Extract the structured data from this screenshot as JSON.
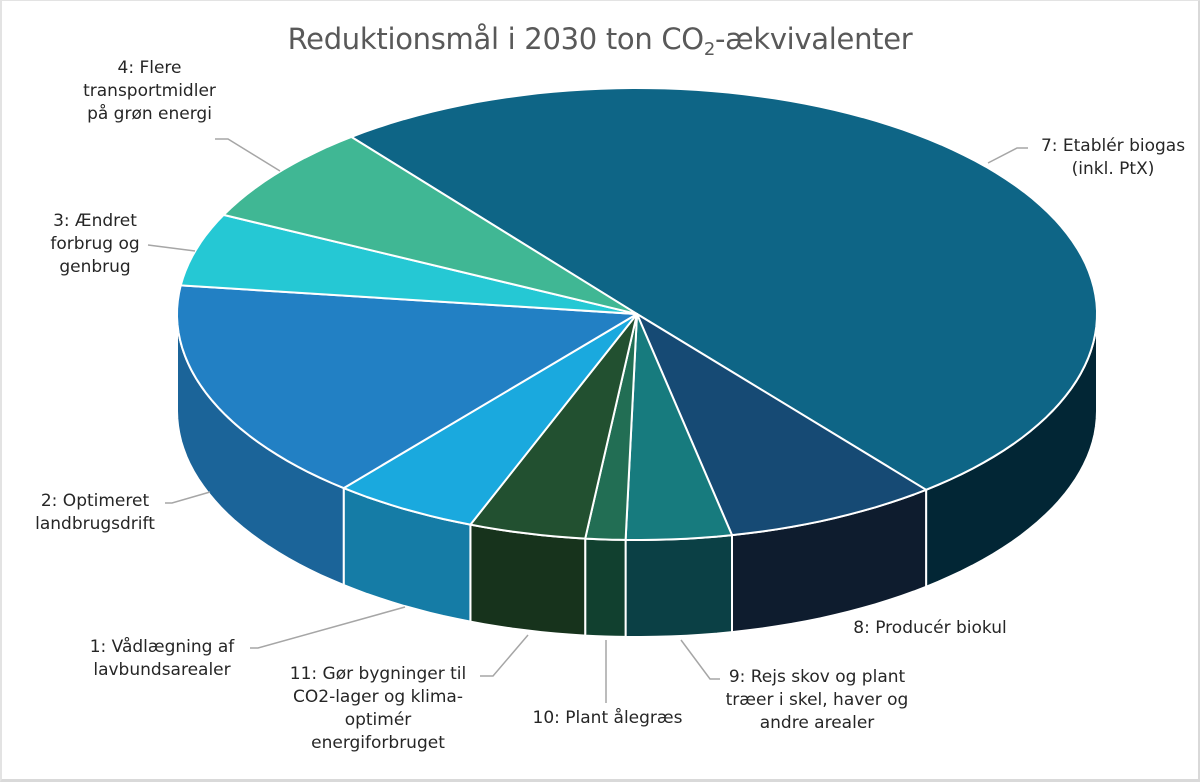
{
  "chart_data": {
    "type": "pie",
    "variant": "3d",
    "title": "Reduktionsmål i 2030 ton CO",
    "title_subscript": "2",
    "title_suffix": "-ækvivalenter",
    "value_note": "estimated shares (%) read from slice angles; no values printed",
    "start_angle_deg": 231.6,
    "direction": "clockwise",
    "slices": [
      {
        "label": "7: Etablér biogas\n(inkl. PtX)",
        "value": 49.8,
        "color": "#0e6586",
        "side": "#022635"
      },
      {
        "label": "8: Producér biokul",
        "value": 7.5,
        "color": "#164a74",
        "side": "#0e1c2e"
      },
      {
        "label": "9: Rejs skov og plant\ntræer i skel, haver og\nandre arealer",
        "value": 3.7,
        "color": "#177b7e",
        "side": "#0b4045"
      },
      {
        "label": "10: Plant ålegræs",
        "value": 1.4,
        "color": "#226e54",
        "side": "#11402f"
      },
      {
        "label": "11: Gør bygninger til\nCO2-lager og klima-\noptimér\nenergiforbruget",
        "value": 4.1,
        "color": "#225030",
        "side": "#17331c"
      },
      {
        "label": "1: Vådlægning af\nlavbundsarealer",
        "value": 5.1,
        "color": "#1aa9de",
        "side": "#157ca6"
      },
      {
        "label": "2: Optimeret\nlandbrugsdrift",
        "value": 16.0,
        "color": "#2280c4",
        "side": "#1b6499"
      },
      {
        "label": "3: Ændret\nforbrug og\ngenbrug",
        "value": 5.2,
        "color": "#25c8d4",
        "side": "#1c9aa4"
      },
      {
        "label": "4: Flere\ntransportmidler\npå grøn energi",
        "value": 7.1,
        "color": "#40b794",
        "side": "#2f8a70"
      }
    ]
  }
}
